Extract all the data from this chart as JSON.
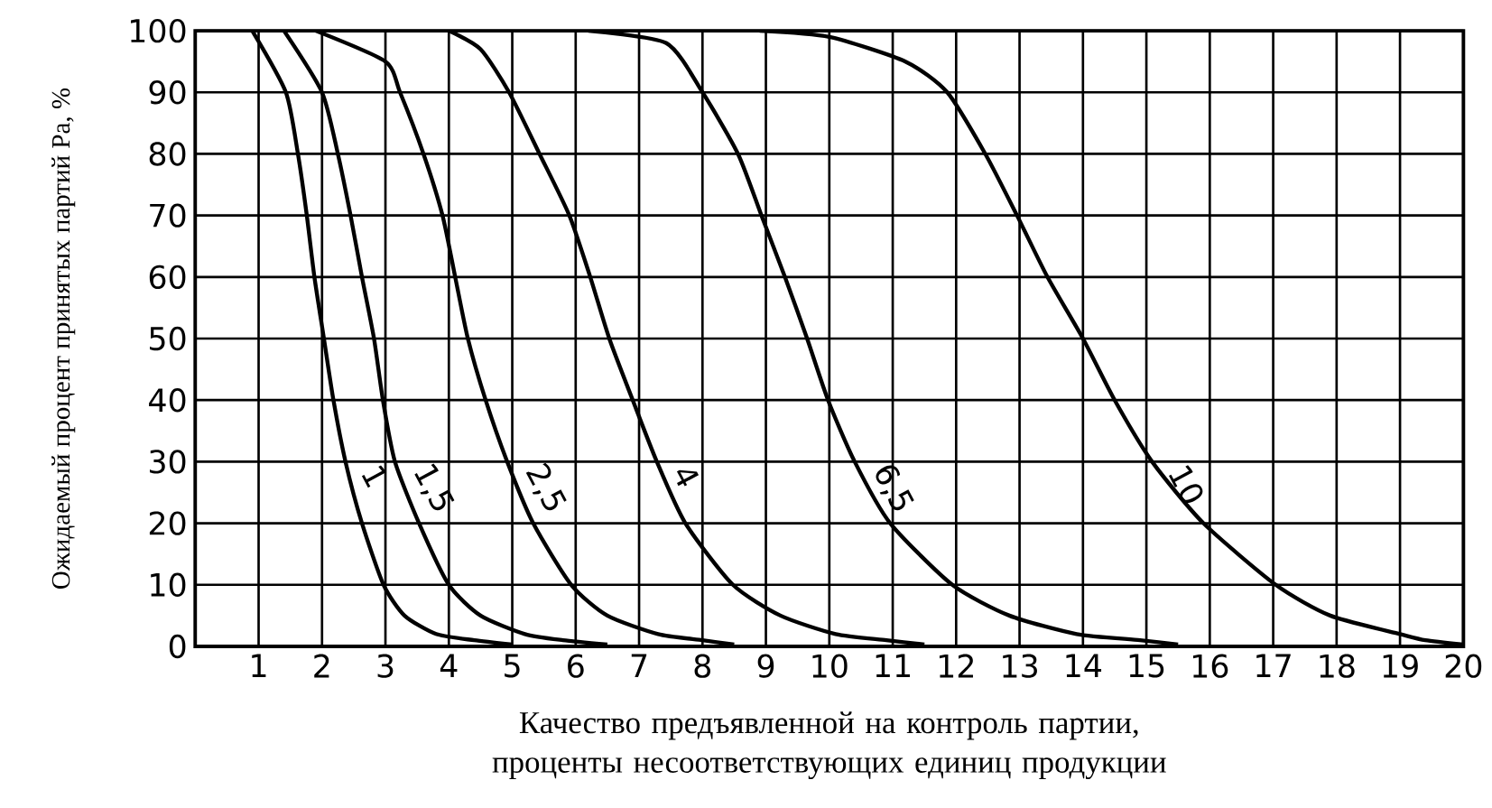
{
  "chart_data": {
    "type": "line",
    "xlabel": "Качество предъявленной на контроль партии, проценты несоответствующих единиц продукции",
    "ylabel": "Ожидаемый процент принятых партий Pa, %",
    "xlim": [
      0,
      20
    ],
    "ylim": [
      0,
      100
    ],
    "xticks": [
      1,
      2,
      3,
      4,
      5,
      6,
      7,
      8,
      9,
      10,
      11,
      12,
      13,
      14,
      15,
      16,
      17,
      18,
      19,
      20
    ],
    "yticks": [
      0,
      10,
      20,
      30,
      40,
      50,
      60,
      70,
      80,
      90,
      100
    ],
    "grid": true,
    "legend": false,
    "marker": "none",
    "line_style": "solid",
    "series": [
      {
        "name": "1",
        "color": "#000000",
        "x": [
          0.9,
          1.43,
          1.62,
          1.76,
          1.88,
          2.03,
          2.18,
          2.37,
          2.63,
          2.97,
          3.3,
          3.8,
          4.4,
          5.0
        ],
        "values": [
          100,
          90,
          80,
          70,
          60,
          50,
          40,
          30,
          20,
          10,
          5,
          2,
          1,
          0.3
        ]
      },
      {
        "name": "1,5",
        "color": "#000000",
        "x": [
          1.4,
          2.0,
          2.25,
          2.45,
          2.63,
          2.82,
          2.96,
          3.15,
          3.53,
          4.0,
          4.5,
          5.2,
          5.8,
          6.5
        ],
        "values": [
          100,
          90,
          80,
          70,
          60,
          50,
          40,
          30,
          20,
          10,
          5,
          2,
          1,
          0.3
        ]
      },
      {
        "name": "2,5",
        "color": "#000000",
        "x": [
          1.9,
          3.0,
          3.23,
          3.6,
          3.9,
          4.1,
          4.3,
          4.58,
          4.92,
          5.33,
          5.93,
          6.5,
          7.3,
          8.0,
          8.5
        ],
        "values": [
          100,
          95,
          90,
          80,
          70,
          60,
          50,
          40,
          30,
          20,
          10,
          5,
          2,
          1,
          0.3
        ]
      },
      {
        "name": "4",
        "color": "#000000",
        "x": [
          4.0,
          4.5,
          4.95,
          5.43,
          5.9,
          6.23,
          6.53,
          6.9,
          7.28,
          7.73,
          8.48,
          9.23,
          10.1,
          10.9,
          11.5
        ],
        "values": [
          100,
          97,
          90,
          80,
          70,
          60,
          50,
          40,
          30,
          20,
          10,
          5,
          2,
          1,
          0.3
        ]
      },
      {
        "name": "6,5",
        "color": "#000000",
        "x": [
          6.2,
          7.43,
          8.0,
          8.56,
          8.93,
          9.3,
          9.65,
          9.98,
          10.4,
          10.96,
          11.94,
          12.84,
          13.9,
          14.9,
          15.5
        ],
        "values": [
          100,
          98,
          90,
          80,
          70,
          60,
          50,
          40,
          30,
          20,
          10,
          5,
          2,
          1,
          0.3
        ]
      },
      {
        "name": "10",
        "color": "#000000",
        "x": [
          8.9,
          10.0,
          11.2,
          11.86,
          12.46,
          12.96,
          13.44,
          14.0,
          14.5,
          15.09,
          15.9,
          17.04,
          17.9,
          19.0,
          19.4,
          20.0
        ],
        "values": [
          100,
          99,
          95,
          90,
          80,
          70,
          60,
          50,
          40,
          30,
          20,
          10,
          5,
          2,
          1,
          0.3
        ]
      }
    ]
  }
}
